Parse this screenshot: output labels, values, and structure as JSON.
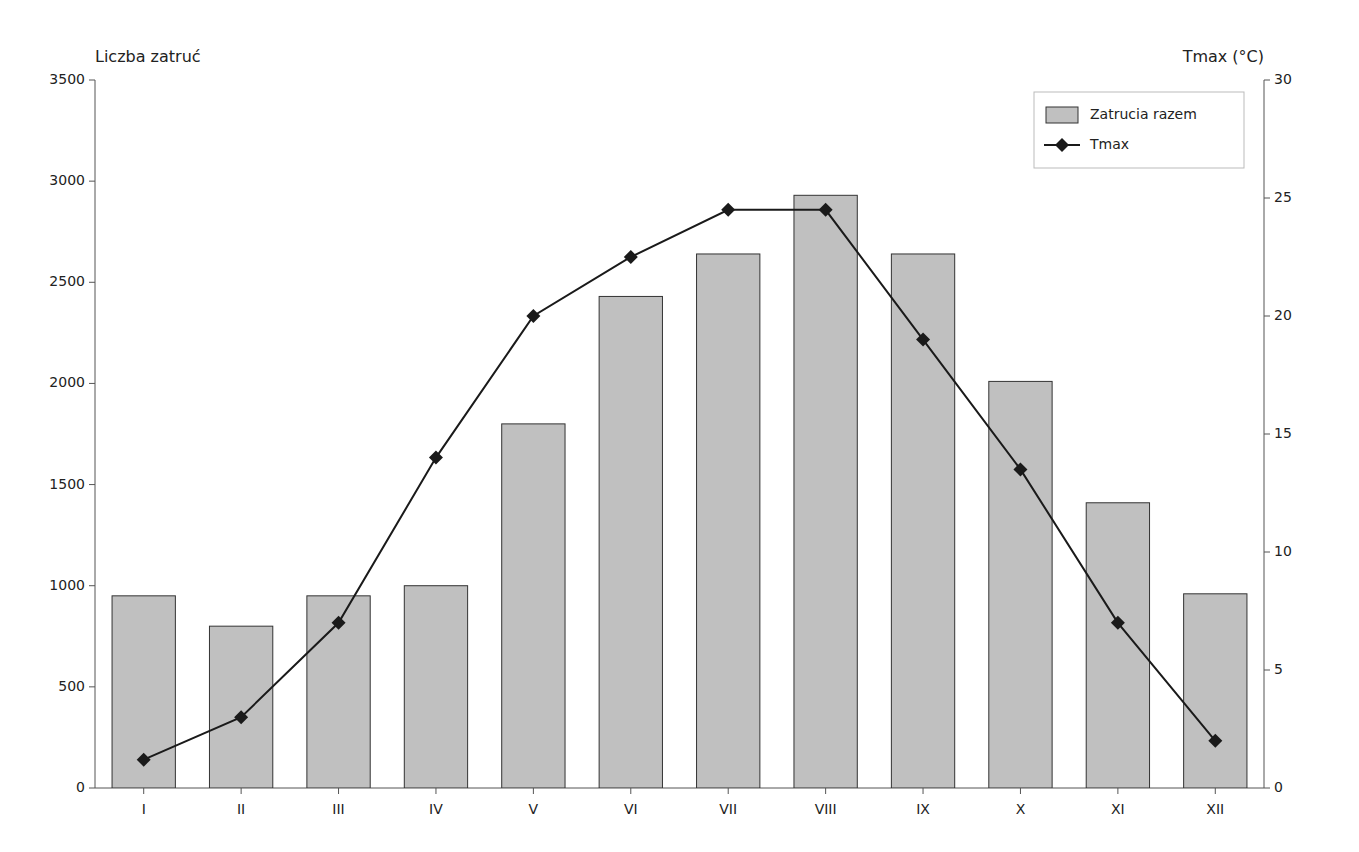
{
  "chart_data": {
    "type": "bar",
    "ylabel": "Liczba zatruć",
    "y2label": "Tmax (°C)",
    "categories": [
      "I",
      "II",
      "III",
      "IV",
      "V",
      "VI",
      "VII",
      "VIII",
      "IX",
      "X",
      "XI",
      "XII"
    ],
    "series": [
      {
        "name": "Zatrucia razem",
        "type": "bar",
        "color": "#c0c0c0",
        "values": [
          950,
          800,
          950,
          1000,
          1800,
          2430,
          2640,
          2930,
          2640,
          2010,
          1410,
          960
        ]
      },
      {
        "name": "Tmax",
        "type": "line",
        "axis": "y2",
        "color": "#1a1a1a",
        "marker": "diamond",
        "values": [
          1.2,
          3.0,
          7.0,
          14.0,
          20.0,
          22.5,
          24.5,
          24.5,
          19.0,
          13.5,
          7.0,
          2.0
        ]
      }
    ],
    "ylim": [
      0,
      3500
    ],
    "yticks": [
      0,
      500,
      1000,
      1500,
      2000,
      2500,
      3000,
      3500
    ],
    "y2lim": [
      0,
      30
    ],
    "y2ticks": [
      0,
      5,
      10,
      15,
      20,
      25,
      30
    ],
    "legend": "upper right",
    "grid": false
  }
}
